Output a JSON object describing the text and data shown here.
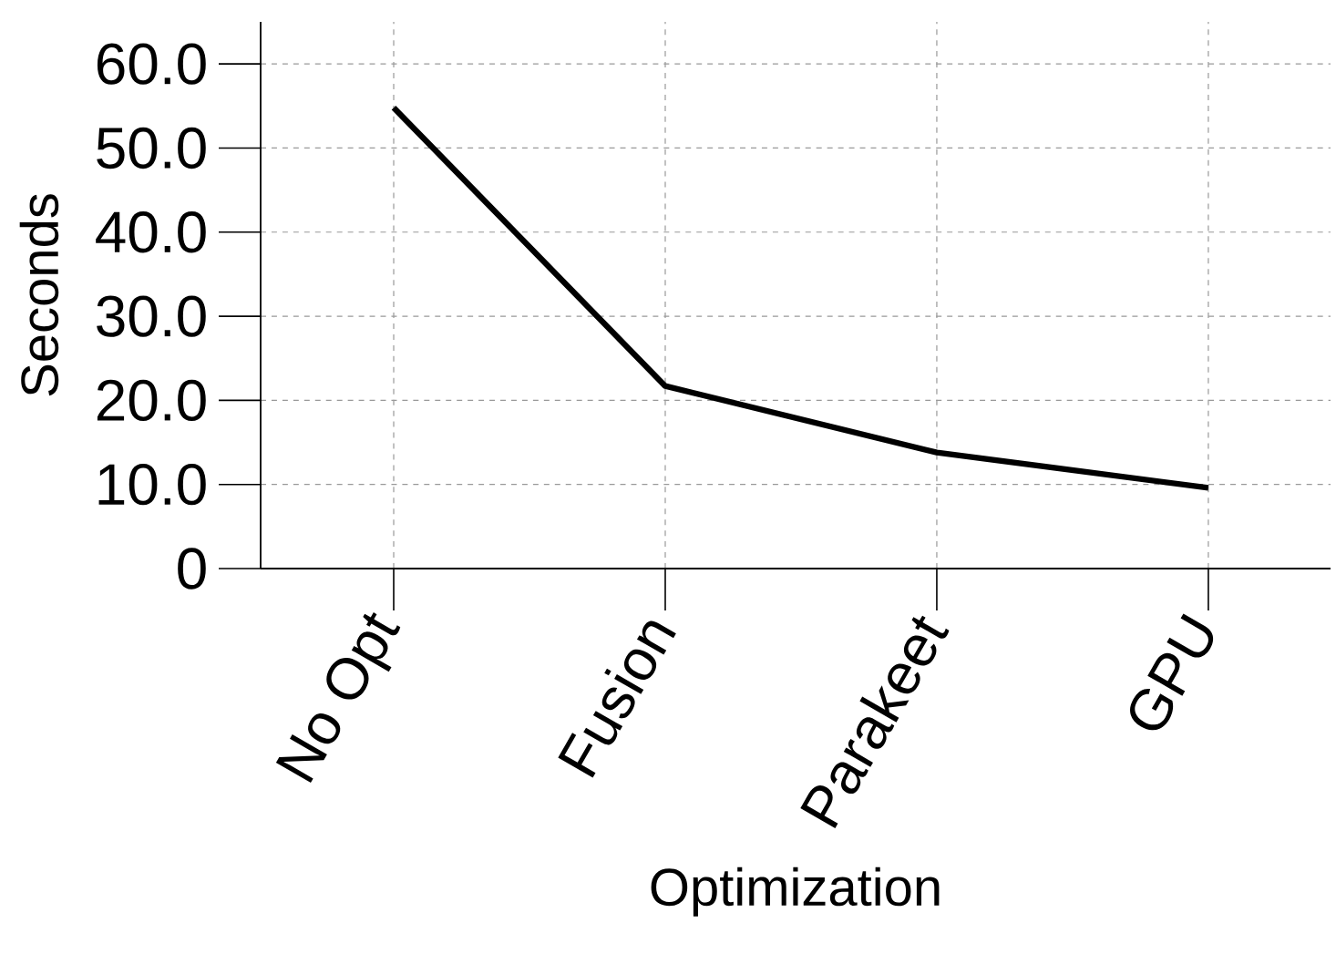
{
  "chart_data": {
    "type": "line",
    "xlabel": "Optimization",
    "ylabel": "Seconds",
    "categories": [
      "No Opt",
      "Fusion",
      "Parakeet",
      "GPU"
    ],
    "series": [
      {
        "color": "#000000",
        "values": [
          54.8,
          21.7,
          13.8,
          9.6
        ]
      }
    ],
    "ylim": [
      0,
      65
    ],
    "yticks": [
      {
        "value": 0,
        "label": "0"
      },
      {
        "value": 10,
        "label": "10.0"
      },
      {
        "value": 20,
        "label": "20.0"
      },
      {
        "value": 30,
        "label": "30.0"
      },
      {
        "value": 40,
        "label": "40.0"
      },
      {
        "value": 50,
        "label": "50.0"
      },
      {
        "value": 60,
        "label": "60.0"
      }
    ],
    "grid": true,
    "marker": "none",
    "line_style": "solid"
  }
}
